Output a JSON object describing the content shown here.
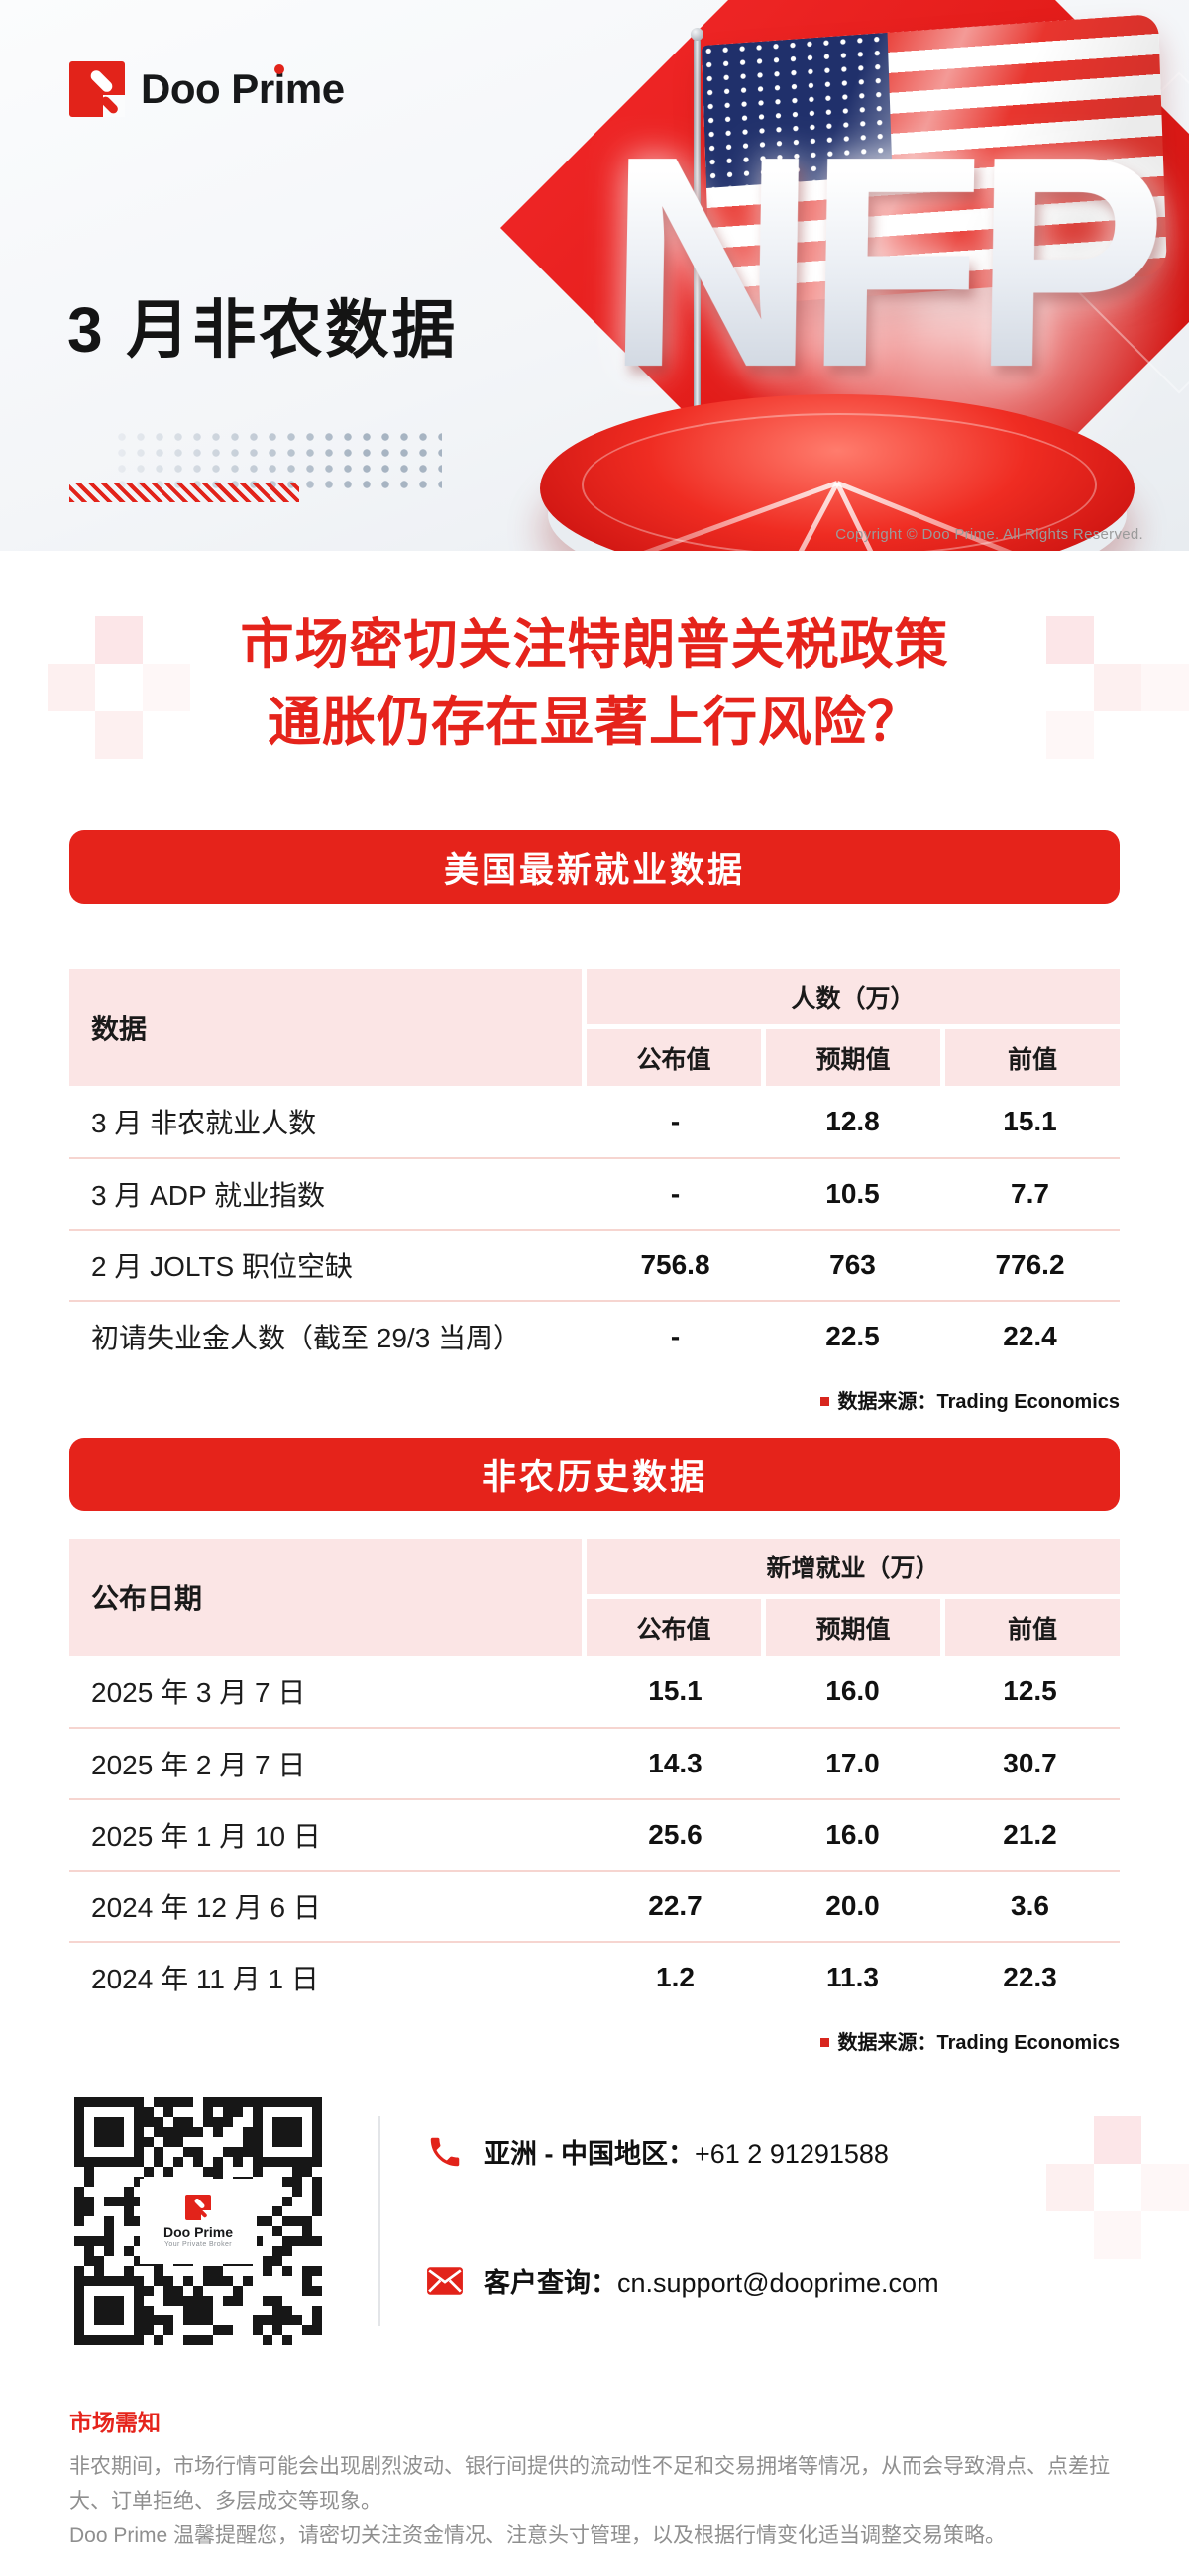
{
  "brand": {
    "wordmark_left": "Doo Pr",
    "wordmark_i": "i",
    "wordmark_right": "me"
  },
  "hero": {
    "title": "3 月非农数据",
    "nfp_text": "NFP",
    "copyright": "Copyright © Doo Prime. All Rights Reserved."
  },
  "headline": {
    "line1": "市场密切关注特朗普关税政策",
    "line2": "通胀仍存在显著上行风险？"
  },
  "section1": {
    "banner": "美国最新就业数据",
    "table": {
      "col_group_label": "数据",
      "group_header": "人数（万）",
      "columns": [
        "公布值",
        "预期值",
        "前值"
      ],
      "rows": [
        {
          "label": "3 月 非农就业人数",
          "values": [
            "-",
            "12.8",
            "15.1"
          ]
        },
        {
          "label": "3 月 ADP 就业指数",
          "values": [
            "-",
            "10.5",
            "7.7"
          ]
        },
        {
          "label": "2 月 JOLTS 职位空缺",
          "values": [
            "756.8",
            "763",
            "776.2"
          ]
        },
        {
          "label": "初请失业金人数（截至 29/3 当周）",
          "values": [
            "-",
            "22.5",
            "22.4"
          ]
        }
      ]
    },
    "source": "数据来源：Trading Economics"
  },
  "section2": {
    "banner": "非农历史数据",
    "table": {
      "col_group_label": "公布日期",
      "group_header": "新增就业（万）",
      "columns": [
        "公布值",
        "预期值",
        "前值"
      ],
      "rows": [
        {
          "label": "2025 年 3 月 7 日",
          "values": [
            "15.1",
            "16.0",
            "12.5"
          ]
        },
        {
          "label": "2025 年 2 月 7 日",
          "values": [
            "14.3",
            "17.0",
            "30.7"
          ]
        },
        {
          "label": "2025 年 1 月 10 日",
          "values": [
            "25.6",
            "16.0",
            "21.2"
          ]
        },
        {
          "label": "2024 年 12 月 6 日",
          "values": [
            "22.7",
            "20.0",
            "3.6"
          ]
        },
        {
          "label": "2024 年 11 月 1 日",
          "values": [
            "1.2",
            "11.3",
            "22.3"
          ]
        }
      ]
    },
    "source": "数据来源：Trading Economics"
  },
  "contact": {
    "qr_brand": "Doo Prime",
    "qr_tagline": "Your Private Broker",
    "phone_label": "亚洲 - 中国地区：",
    "phone_number": "+61 2 91291588",
    "email_label": "客户查询：",
    "email_address": "cn.support@dooprime.com"
  },
  "footer": {
    "title": "市场需知",
    "para1": "非农期间，市场行情可能会出现剧烈波动、银行间提供的流动性不足和交易拥堵等情况，从而会导致滑点、点差拉大、订单拒绝、多层成交等现象。",
    "para2": "Doo Prime 温馨提醒您，请密切关注资金情况、注意头寸管理，以及根据行情变化适当调整交易策略。"
  },
  "colors": {
    "brand_red": "#E2231A",
    "banner_red": "#E5231B",
    "pink_cell": "#FBE5E5",
    "row_divider": "#F6D5D0",
    "text_gray": "#8F8F8F"
  }
}
